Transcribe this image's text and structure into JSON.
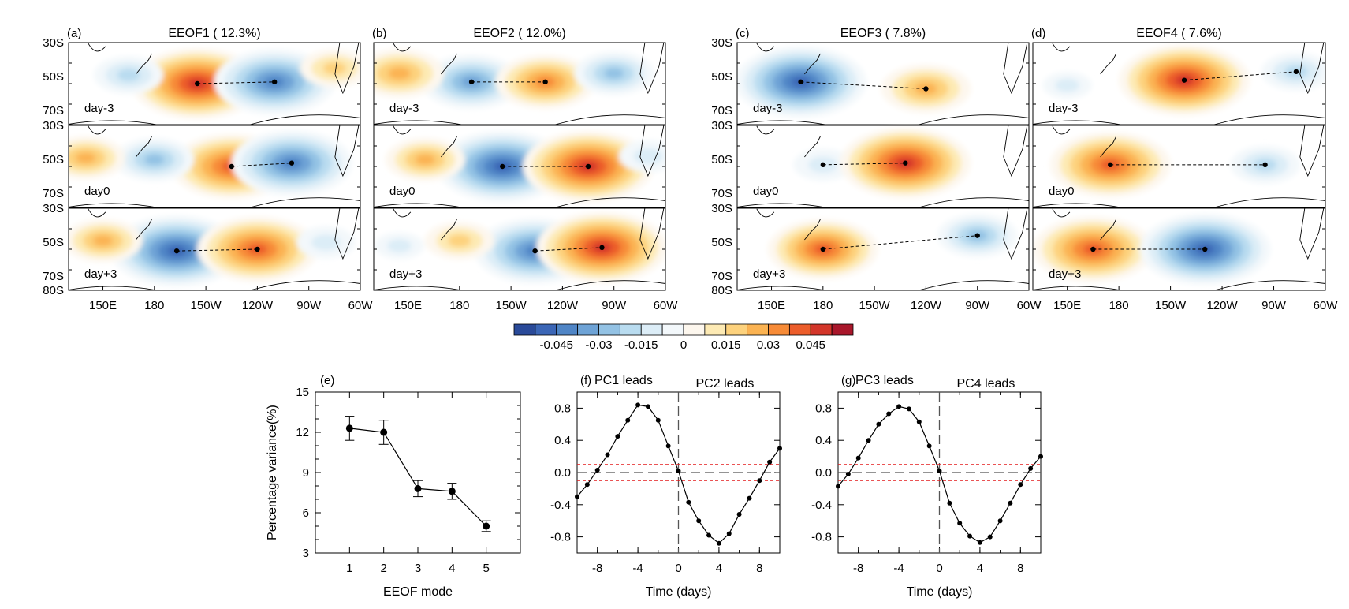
{
  "colorbar": {
    "colors": [
      "#2a4a99",
      "#3b66b6",
      "#4f85c6",
      "#6ea3d6",
      "#93c2e4",
      "#b9dcf0",
      "#dcedf7",
      "#f3f8fb",
      "#fdf7ee",
      "#fdeab4",
      "#fdd27d",
      "#fbb352",
      "#f78b37",
      "#ec5d2b",
      "#d3362a",
      "#a9172b"
    ],
    "tick_labels": [
      "-0.045",
      "-0.03",
      "-0.015",
      "0",
      "0.015",
      "0.03",
      "0.045"
    ]
  },
  "chart_data": [
    {
      "type": "heatmap",
      "panel": "(a)",
      "title": "EEOF1 ( 12.3%)",
      "rows": [
        "day-3",
        "day0",
        "day+3"
      ],
      "x_tick_labels": [
        "150E",
        "180",
        "150W",
        "120W",
        "90W",
        "60W"
      ],
      "y_tick_labels": [
        "30S",
        "50S",
        "70S",
        "80S"
      ],
      "xlim_lon": [
        130,
        300
      ],
      "ylim_lat": [
        -80,
        -30
      ],
      "centers": [
        [
          {
            "lon": 205,
            "lat": -54,
            "value": 0.05
          },
          {
            "lon": 250,
            "lat": -53,
            "value": -0.045
          },
          {
            "lon": 165,
            "lat": -49,
            "value": -0.02
          },
          {
            "lon": 285,
            "lat": -45,
            "value": 0.02
          }
        ],
        [
          {
            "lon": 225,
            "lat": -54,
            "value": 0.045
          },
          {
            "lon": 260,
            "lat": -52,
            "value": -0.045
          },
          {
            "lon": 180,
            "lat": -50,
            "value": -0.025
          },
          {
            "lon": 140,
            "lat": -49,
            "value": 0.025
          }
        ],
        [
          {
            "lon": 193,
            "lat": -55,
            "value": -0.05
          },
          {
            "lon": 240,
            "lat": -54,
            "value": 0.045
          },
          {
            "lon": 150,
            "lat": -49,
            "value": 0.025
          },
          {
            "lon": 280,
            "lat": -50,
            "value": -0.015
          }
        ]
      ]
    },
    {
      "type": "heatmap",
      "panel": "(b)",
      "title": "EEOF2 ( 12.0%)",
      "rows": [
        "day-3",
        "day0",
        "day+3"
      ],
      "x_tick_labels": [
        "150E",
        "180",
        "150W",
        "120W",
        "90W",
        "60W"
      ],
      "y_tick_labels": [
        "30S",
        "50S",
        "70S",
        "80S"
      ],
      "xlim_lon": [
        130,
        300
      ],
      "ylim_lat": [
        -80,
        -30
      ],
      "centers": [
        [
          {
            "lon": 187,
            "lat": -53,
            "value": -0.035
          },
          {
            "lon": 230,
            "lat": -53,
            "value": 0.035
          },
          {
            "lon": 145,
            "lat": -48,
            "value": 0.03
          },
          {
            "lon": 270,
            "lat": -48,
            "value": -0.025
          }
        ],
        [
          {
            "lon": 205,
            "lat": -54,
            "value": -0.05
          },
          {
            "lon": 255,
            "lat": -54,
            "value": 0.05
          },
          {
            "lon": 160,
            "lat": -50,
            "value": 0.025
          },
          {
            "lon": 290,
            "lat": -48,
            "value": -0.015
          }
        ],
        [
          {
            "lon": 224,
            "lat": -55,
            "value": -0.045
          },
          {
            "lon": 263,
            "lat": -53,
            "value": 0.05
          },
          {
            "lon": 180,
            "lat": -49,
            "value": 0.02
          },
          {
            "lon": 145,
            "lat": -52,
            "value": -0.01
          }
        ]
      ]
    },
    {
      "type": "heatmap",
      "panel": "(c)",
      "title": "EEOF3 (  7.8%)",
      "rows": [
        "day-3",
        "day0",
        "day+3"
      ],
      "x_tick_labels": [
        "150E",
        "180",
        "150W",
        "120W",
        "90W",
        "60W"
      ],
      "y_tick_labels": [
        "30S",
        "50S",
        "70S",
        "80S"
      ],
      "xlim_lon": [
        130,
        300
      ],
      "ylim_lat": [
        -80,
        -30
      ],
      "centers": [
        [
          {
            "lon": 167,
            "lat": -53,
            "value": -0.05
          },
          {
            "lon": 240,
            "lat": -57,
            "value": 0.03
          }
        ],
        [
          {
            "lon": 180,
            "lat": -53,
            "value": -0.015
          },
          {
            "lon": 228,
            "lat": -52,
            "value": 0.05
          }
        ],
        [
          {
            "lon": 180,
            "lat": -54,
            "value": 0.04
          },
          {
            "lon": 270,
            "lat": -46,
            "value": -0.025
          }
        ]
      ]
    },
    {
      "type": "heatmap",
      "panel": "(d)",
      "title": "EEOF4 (  7.6%)",
      "rows": [
        "day-3",
        "day0",
        "day+3"
      ],
      "x_tick_labels": [
        "150E",
        "180",
        "150W",
        "120W",
        "90W",
        "60W"
      ],
      "y_tick_labels": [
        "30S",
        "50S",
        "70S",
        "80S"
      ],
      "xlim_lon": [
        130,
        300
      ],
      "ylim_lat": [
        -80,
        -30
      ],
      "centers": [
        [
          {
            "lon": 218,
            "lat": -52,
            "value": 0.05
          },
          {
            "lon": 283,
            "lat": -47,
            "value": -0.02
          },
          {
            "lon": 150,
            "lat": -55,
            "value": -0.01
          }
        ],
        [
          {
            "lon": 175,
            "lat": -53,
            "value": 0.045
          },
          {
            "lon": 265,
            "lat": -53,
            "value": -0.02
          }
        ],
        [
          {
            "lon": 165,
            "lat": -54,
            "value": 0.045
          },
          {
            "lon": 230,
            "lat": -54,
            "value": -0.05
          }
        ]
      ]
    },
    {
      "type": "scatter",
      "panel": "(e)",
      "xlabel": "EEOF mode",
      "ylabel": "Percentage variance(%)",
      "x": [
        1,
        2,
        3,
        4,
        5
      ],
      "values": [
        12.3,
        12.0,
        7.8,
        7.6,
        5.0
      ],
      "error": [
        0.9,
        0.9,
        0.6,
        0.6,
        0.4
      ],
      "xlim": [
        0,
        6
      ],
      "ylim": [
        3,
        15
      ],
      "x_ticks": [
        "1",
        "2",
        "3",
        "4",
        "5"
      ],
      "y_ticks": [
        "3",
        "6",
        "9",
        "12",
        "15"
      ]
    },
    {
      "type": "line",
      "panel": "(f)",
      "left_label": "PC1 leads",
      "right_label": "PC2 leads",
      "xlabel": "Time (days)",
      "x": [
        -10,
        -9,
        -8,
        -7,
        -6,
        -5,
        -4,
        -3,
        -2,
        -1,
        0,
        1,
        2,
        3,
        4,
        5,
        6,
        7,
        8,
        9,
        10
      ],
      "values": [
        -0.3,
        -0.15,
        0.03,
        0.22,
        0.45,
        0.65,
        0.84,
        0.82,
        0.65,
        0.33,
        0.02,
        -0.37,
        -0.6,
        -0.78,
        -0.88,
        -0.76,
        -0.52,
        -0.32,
        -0.1,
        0.13,
        0.3
      ],
      "threshold": 0.1,
      "xlim": [
        -10,
        10
      ],
      "ylim": [
        -1,
        1
      ],
      "x_ticks": [
        "-8",
        "-4",
        "0",
        "4",
        "8"
      ],
      "y_ticks": [
        "-0.8",
        "-0.4",
        "0.0",
        "0.4",
        "0.8"
      ]
    },
    {
      "type": "line",
      "panel": "(g)",
      "left_label": "PC3 leads",
      "right_label": "PC4 leads",
      "xlabel": "Time (days)",
      "x": [
        -10,
        -9,
        -8,
        -7,
        -6,
        -5,
        -4,
        -3,
        -2,
        -1,
        0,
        1,
        2,
        3,
        4,
        5,
        6,
        7,
        8,
        9,
        10
      ],
      "values": [
        -0.17,
        -0.02,
        0.18,
        0.4,
        0.6,
        0.73,
        0.82,
        0.79,
        0.63,
        0.33,
        0.02,
        -0.38,
        -0.63,
        -0.79,
        -0.87,
        -0.8,
        -0.6,
        -0.38,
        -0.15,
        0.05,
        0.2
      ],
      "threshold": 0.1,
      "xlim": [
        -10,
        10
      ],
      "ylim": [
        -1,
        1
      ],
      "x_ticks": [
        "-8",
        "-4",
        "0",
        "4",
        "8"
      ],
      "y_ticks": [
        "-0.8",
        "-0.4",
        "0.0",
        "0.4",
        "0.8"
      ]
    }
  ]
}
